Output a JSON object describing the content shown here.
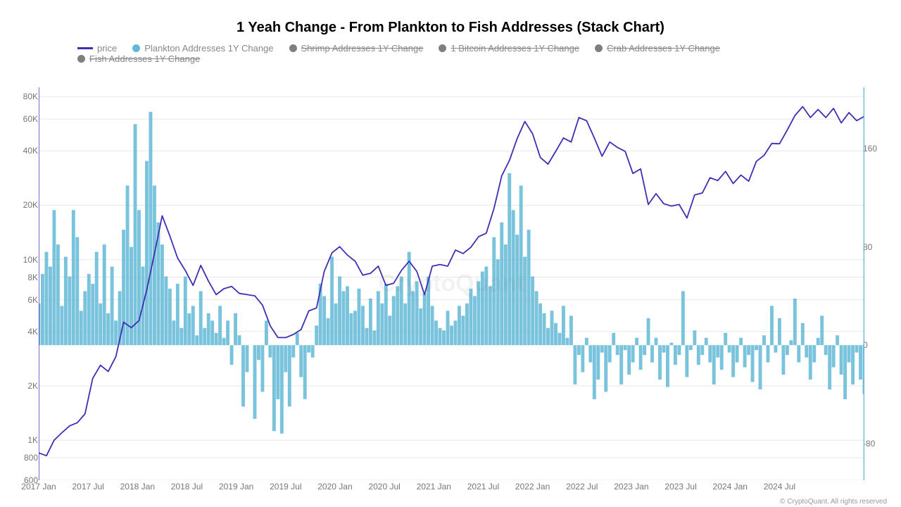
{
  "chart": {
    "title": "1 Yeah Change - From Plankton to Fish Addresses (Stack Chart)",
    "watermark": "CryptoQuant",
    "credit": "© CryptoQuant. All rights reserved",
    "background_color": "#ffffff",
    "title_fontsize": 20,
    "label_fontsize": 12,
    "legend": [
      {
        "label": "price",
        "type": "line",
        "color": "#3d2eb5",
        "active": true
      },
      {
        "label": "Plankton Addresses 1Y Change",
        "type": "dot",
        "color": "#63b8d6",
        "active": true
      },
      {
        "label": "Shrimp Addresses 1Y Change",
        "type": "dot",
        "color": "#7f7f7f",
        "active": false
      },
      {
        "label": "1 Bitcoin Addresses 1Y Change",
        "type": "dot",
        "color": "#7f7f7f",
        "active": false
      },
      {
        "label": "Crab Addresses 1Y Change",
        "type": "dot",
        "color": "#7f7f7f",
        "active": false
      },
      {
        "label": "Fish Addresses 1Y Change",
        "type": "dot",
        "color": "#7f7f7f",
        "active": false
      }
    ],
    "x_axis": {
      "ticks": [
        "2017 Jan",
        "2017 Jul",
        "2018 Jan",
        "2018 Jul",
        "2019 Jan",
        "2019 Jul",
        "2020 Jan",
        "2020 Jul",
        "2021 Jan",
        "2021 Jul",
        "2022 Jan",
        "2022 Jul",
        "2023 Jan",
        "2023 Jul",
        "2024 Jan",
        "2024 Jul"
      ],
      "min": 0,
      "max": 96
    },
    "y_left": {
      "scale": "log",
      "ticks": [
        600,
        800,
        1000,
        2000,
        4000,
        6000,
        8000,
        10000,
        20000,
        40000,
        60000,
        80000
      ],
      "tick_labels": [
        "600",
        "800",
        "1K",
        "2K",
        "4K",
        "6K",
        "8K",
        "10K",
        "20K",
        "40K",
        "60K",
        "80K"
      ],
      "min": 600,
      "max": 90000
    },
    "y_right": {
      "scale": "linear",
      "ticks": [
        -80,
        0,
        80,
        160
      ],
      "min": -110,
      "max": 210
    },
    "colors": {
      "price_line": "#3d2eb5",
      "bars": "#63b8d6",
      "grid": "#e8e8e8",
      "axis": "#999999",
      "label": "#777777"
    },
    "line_width": 1.8,
    "price_series": [
      [
        0,
        850
      ],
      [
        1,
        820
      ],
      [
        2,
        1000
      ],
      [
        3,
        1100
      ],
      [
        4,
        1200
      ],
      [
        5,
        1250
      ],
      [
        6,
        1400
      ],
      [
        7,
        2200
      ],
      [
        8,
        2600
      ],
      [
        9,
        2400
      ],
      [
        10,
        2900
      ],
      [
        11,
        4500
      ],
      [
        12,
        4200
      ],
      [
        13,
        4600
      ],
      [
        14,
        6800
      ],
      [
        15,
        10800
      ],
      [
        16,
        17500
      ],
      [
        17,
        13500
      ],
      [
        18,
        10200
      ],
      [
        19,
        8700
      ],
      [
        20,
        7200
      ],
      [
        21,
        9300
      ],
      [
        22,
        7600
      ],
      [
        23,
        6400
      ],
      [
        24,
        6900
      ],
      [
        25,
        7100
      ],
      [
        26,
        6500
      ],
      [
        27,
        6400
      ],
      [
        28,
        6300
      ],
      [
        29,
        5600
      ],
      [
        30,
        4300
      ],
      [
        31,
        3700
      ],
      [
        32,
        3700
      ],
      [
        33,
        3850
      ],
      [
        34,
        4100
      ],
      [
        35,
        5200
      ],
      [
        36,
        5400
      ],
      [
        37,
        8600
      ],
      [
        38,
        10900
      ],
      [
        39,
        11800
      ],
      [
        40,
        10600
      ],
      [
        41,
        9800
      ],
      [
        42,
        8200
      ],
      [
        43,
        8400
      ],
      [
        44,
        9200
      ],
      [
        45,
        7200
      ],
      [
        46,
        7400
      ],
      [
        47,
        8700
      ],
      [
        48,
        9800
      ],
      [
        49,
        8600
      ],
      [
        50,
        6400
      ],
      [
        51,
        9200
      ],
      [
        52,
        9400
      ],
      [
        53,
        9200
      ],
      [
        54,
        11300
      ],
      [
        55,
        10800
      ],
      [
        56,
        11700
      ],
      [
        57,
        13400
      ],
      [
        58,
        14000
      ],
      [
        59,
        19200
      ],
      [
        60,
        29100
      ],
      [
        61,
        35400
      ],
      [
        62,
        46800
      ],
      [
        63,
        58200
      ],
      [
        64,
        49800
      ],
      [
        65,
        36800
      ],
      [
        66,
        33800
      ],
      [
        67,
        39800
      ],
      [
        68,
        47200
      ],
      [
        69,
        44800
      ],
      [
        70,
        61200
      ],
      [
        71,
        58800
      ],
      [
        72,
        47200
      ],
      [
        73,
        37400
      ],
      [
        74,
        44800
      ],
      [
        75,
        41800
      ],
      [
        76,
        39800
      ],
      [
        77,
        30000
      ],
      [
        78,
        31800
      ],
      [
        79,
        20200
      ],
      [
        80,
        23200
      ],
      [
        81,
        20400
      ],
      [
        82,
        19800
      ],
      [
        83,
        20200
      ],
      [
        84,
        17000
      ],
      [
        85,
        22800
      ],
      [
        86,
        23400
      ],
      [
        87,
        28400
      ],
      [
        88,
        27400
      ],
      [
        89,
        30800
      ],
      [
        90,
        26400
      ],
      [
        91,
        29400
      ],
      [
        92,
        27200
      ],
      [
        93,
        35000
      ],
      [
        94,
        37800
      ],
      [
        95,
        44000
      ],
      [
        96,
        43800
      ],
      [
        97,
        52200
      ],
      [
        98,
        62800
      ],
      [
        99,
        70400
      ],
      [
        100,
        61200
      ],
      [
        101,
        67800
      ],
      [
        102,
        61200
      ],
      [
        103,
        68800
      ],
      [
        104,
        57200
      ],
      [
        105,
        65200
      ],
      [
        106,
        58800
      ],
      [
        107,
        62200
      ]
    ],
    "bar_series": [
      [
        0,
        34
      ],
      [
        0.5,
        58
      ],
      [
        1,
        76
      ],
      [
        1.5,
        64
      ],
      [
        2,
        110
      ],
      [
        2.5,
        82
      ],
      [
        3,
        32
      ],
      [
        3.5,
        72
      ],
      [
        4,
        56
      ],
      [
        4.5,
        110
      ],
      [
        5,
        88
      ],
      [
        5.5,
        28
      ],
      [
        6,
        44
      ],
      [
        6.5,
        58
      ],
      [
        7,
        50
      ],
      [
        7.5,
        76
      ],
      [
        8,
        34
      ],
      [
        8.5,
        82
      ],
      [
        9,
        26
      ],
      [
        9.5,
        64
      ],
      [
        10,
        20
      ],
      [
        10.5,
        44
      ],
      [
        11,
        94
      ],
      [
        11.5,
        130
      ],
      [
        12,
        80
      ],
      [
        12.5,
        180
      ],
      [
        13,
        110
      ],
      [
        13.5,
        64
      ],
      [
        14,
        150
      ],
      [
        14.5,
        190
      ],
      [
        15,
        130
      ],
      [
        15.5,
        100
      ],
      [
        16,
        82
      ],
      [
        16.5,
        56
      ],
      [
        17,
        46
      ],
      [
        17.5,
        20
      ],
      [
        18,
        50
      ],
      [
        18.5,
        14
      ],
      [
        19,
        56
      ],
      [
        19.5,
        26
      ],
      [
        20,
        32
      ],
      [
        20.5,
        8
      ],
      [
        21,
        44
      ],
      [
        21.5,
        14
      ],
      [
        22,
        26
      ],
      [
        22.5,
        20
      ],
      [
        23,
        10
      ],
      [
        23.5,
        32
      ],
      [
        24,
        6
      ],
      [
        24.5,
        20
      ],
      [
        25,
        -16
      ],
      [
        25.5,
        26
      ],
      [
        26,
        8
      ],
      [
        26.5,
        -50
      ],
      [
        27,
        -22
      ],
      [
        27.5,
        0
      ],
      [
        28,
        -60
      ],
      [
        28.5,
        -12
      ],
      [
        29,
        -38
      ],
      [
        29.5,
        20
      ],
      [
        30,
        -10
      ],
      [
        30.5,
        -70
      ],
      [
        31,
        -44
      ],
      [
        31.5,
        -72
      ],
      [
        32,
        -22
      ],
      [
        32.5,
        -50
      ],
      [
        33,
        -10
      ],
      [
        33.5,
        10
      ],
      [
        34,
        -26
      ],
      [
        34.5,
        -44
      ],
      [
        35,
        -6
      ],
      [
        35.5,
        -10
      ],
      [
        36,
        16
      ],
      [
        36.5,
        50
      ],
      [
        37,
        40
      ],
      [
        37.5,
        22
      ],
      [
        38,
        72
      ],
      [
        38.5,
        34
      ],
      [
        39,
        56
      ],
      [
        39.5,
        44
      ],
      [
        40,
        48
      ],
      [
        40.5,
        26
      ],
      [
        41,
        28
      ],
      [
        41.5,
        46
      ],
      [
        42,
        32
      ],
      [
        42.5,
        14
      ],
      [
        43,
        38
      ],
      [
        43.5,
        12
      ],
      [
        44,
        44
      ],
      [
        44.5,
        34
      ],
      [
        45,
        50
      ],
      [
        45.5,
        24
      ],
      [
        46,
        40
      ],
      [
        46.5,
        48
      ],
      [
        47,
        56
      ],
      [
        47.5,
        34
      ],
      [
        48,
        76
      ],
      [
        48.5,
        44
      ],
      [
        49,
        52
      ],
      [
        49.5,
        30
      ],
      [
        50,
        42
      ],
      [
        50.5,
        56
      ],
      [
        51,
        32
      ],
      [
        51.5,
        20
      ],
      [
        52,
        14
      ],
      [
        52.5,
        12
      ],
      [
        53,
        28
      ],
      [
        53.5,
        16
      ],
      [
        54,
        20
      ],
      [
        54.5,
        32
      ],
      [
        55,
        24
      ],
      [
        55.5,
        34
      ],
      [
        56,
        46
      ],
      [
        56.5,
        40
      ],
      [
        57,
        52
      ],
      [
        57.5,
        60
      ],
      [
        58,
        64
      ],
      [
        58.5,
        48
      ],
      [
        59,
        88
      ],
      [
        59.5,
        70
      ],
      [
        60,
        100
      ],
      [
        60.5,
        82
      ],
      [
        61,
        140
      ],
      [
        61.5,
        110
      ],
      [
        62,
        90
      ],
      [
        62.5,
        130
      ],
      [
        63,
        72
      ],
      [
        63.5,
        94
      ],
      [
        64,
        56
      ],
      [
        64.5,
        44
      ],
      [
        65,
        34
      ],
      [
        65.5,
        26
      ],
      [
        66,
        14
      ],
      [
        66.5,
        28
      ],
      [
        67,
        18
      ],
      [
        67.5,
        10
      ],
      [
        68,
        32
      ],
      [
        68.5,
        6
      ],
      [
        69,
        24
      ],
      [
        69.5,
        -32
      ],
      [
        70,
        -8
      ],
      [
        70.5,
        -22
      ],
      [
        71,
        6
      ],
      [
        71.5,
        -14
      ],
      [
        72,
        -44
      ],
      [
        72.5,
        -28
      ],
      [
        73,
        -6
      ],
      [
        73.5,
        -38
      ],
      [
        74,
        -14
      ],
      [
        74.5,
        10
      ],
      [
        75,
        -8
      ],
      [
        75.5,
        -32
      ],
      [
        76,
        -4
      ],
      [
        76.5,
        -24
      ],
      [
        77,
        -14
      ],
      [
        77.5,
        6
      ],
      [
        78,
        -20
      ],
      [
        78.5,
        -8
      ],
      [
        79,
        22
      ],
      [
        79.5,
        -14
      ],
      [
        80,
        6
      ],
      [
        80.5,
        -28
      ],
      [
        81,
        -6
      ],
      [
        81.5,
        -34
      ],
      [
        82,
        2
      ],
      [
        82.5,
        -16
      ],
      [
        83,
        -8
      ],
      [
        83.5,
        44
      ],
      [
        84,
        -26
      ],
      [
        84.5,
        -4
      ],
      [
        85,
        12
      ],
      [
        85.5,
        -16
      ],
      [
        86,
        -8
      ],
      [
        86.5,
        6
      ],
      [
        87,
        -14
      ],
      [
        87.5,
        -32
      ],
      [
        88,
        -10
      ],
      [
        88.5,
        -20
      ],
      [
        89,
        10
      ],
      [
        89.5,
        -6
      ],
      [
        90,
        -26
      ],
      [
        90.5,
        -14
      ],
      [
        91,
        6
      ],
      [
        91.5,
        -18
      ],
      [
        92,
        -8
      ],
      [
        92.5,
        -30
      ],
      [
        93,
        -4
      ],
      [
        93.5,
        -36
      ],
      [
        94,
        8
      ],
      [
        94.5,
        -14
      ],
      [
        95,
        32
      ],
      [
        95.5,
        -6
      ],
      [
        96,
        22
      ],
      [
        96.5,
        -24
      ],
      [
        97,
        -8
      ],
      [
        97.5,
        4
      ],
      [
        98,
        38
      ],
      [
        98.5,
        -14
      ],
      [
        99,
        18
      ],
      [
        99.5,
        -10
      ],
      [
        100,
        -28
      ],
      [
        100.5,
        -14
      ],
      [
        101,
        6
      ],
      [
        101.5,
        24
      ],
      [
        102,
        -8
      ],
      [
        102.5,
        -36
      ],
      [
        103,
        -18
      ],
      [
        103.5,
        8
      ],
      [
        104,
        -24
      ],
      [
        104.5,
        -44
      ],
      [
        105,
        -14
      ],
      [
        105.5,
        -32
      ],
      [
        106,
        -6
      ],
      [
        106.5,
        -28
      ],
      [
        107,
        -40
      ]
    ]
  }
}
